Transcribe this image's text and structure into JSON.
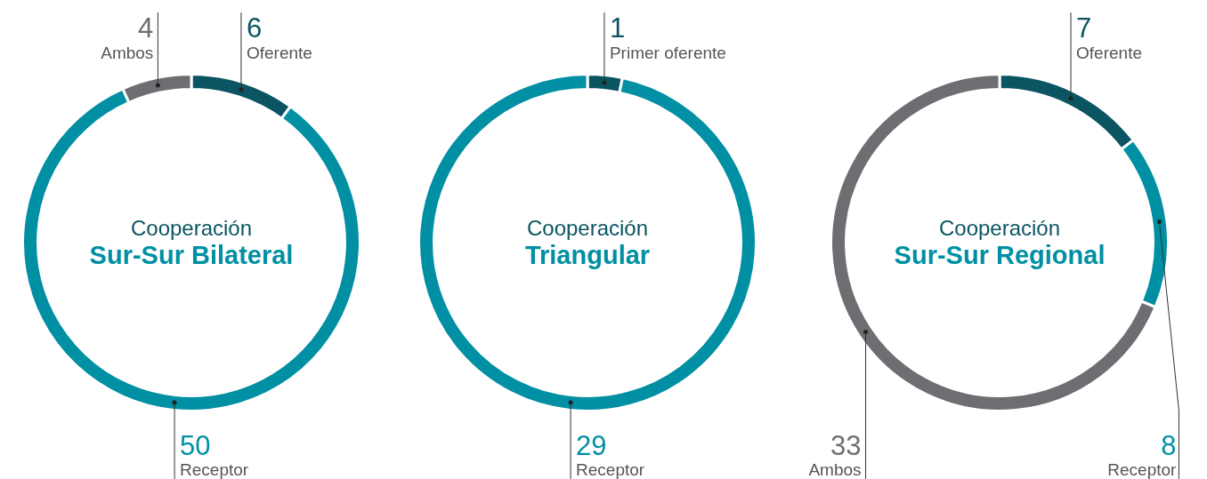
{
  "chart_data": [
    {
      "type": "donut",
      "title": "Cooperación",
      "subtitle": "Sur-Sur Bilateral",
      "categories": [
        "Oferente",
        "Receptor",
        "Ambos"
      ],
      "values": [
        6,
        50,
        4
      ],
      "colors": [
        "#0b5563",
        "#008fa3",
        "#6d6e71"
      ],
      "data_labels": true
    },
    {
      "type": "donut",
      "title": "Cooperación",
      "subtitle": "Triangular",
      "categories": [
        "Primer oferente",
        "Receptor"
      ],
      "values": [
        1,
        29
      ],
      "colors": [
        "#0b5563",
        "#008fa3"
      ],
      "data_labels": true
    },
    {
      "type": "donut",
      "title": "Cooperación",
      "subtitle": "Sur-Sur Regional",
      "categories": [
        "Oferente",
        "Receptor",
        "Ambos"
      ],
      "values": [
        7,
        8,
        33
      ],
      "colors": [
        "#0b5563",
        "#008fa3",
        "#6d6e71"
      ],
      "data_labels": true
    }
  ]
}
